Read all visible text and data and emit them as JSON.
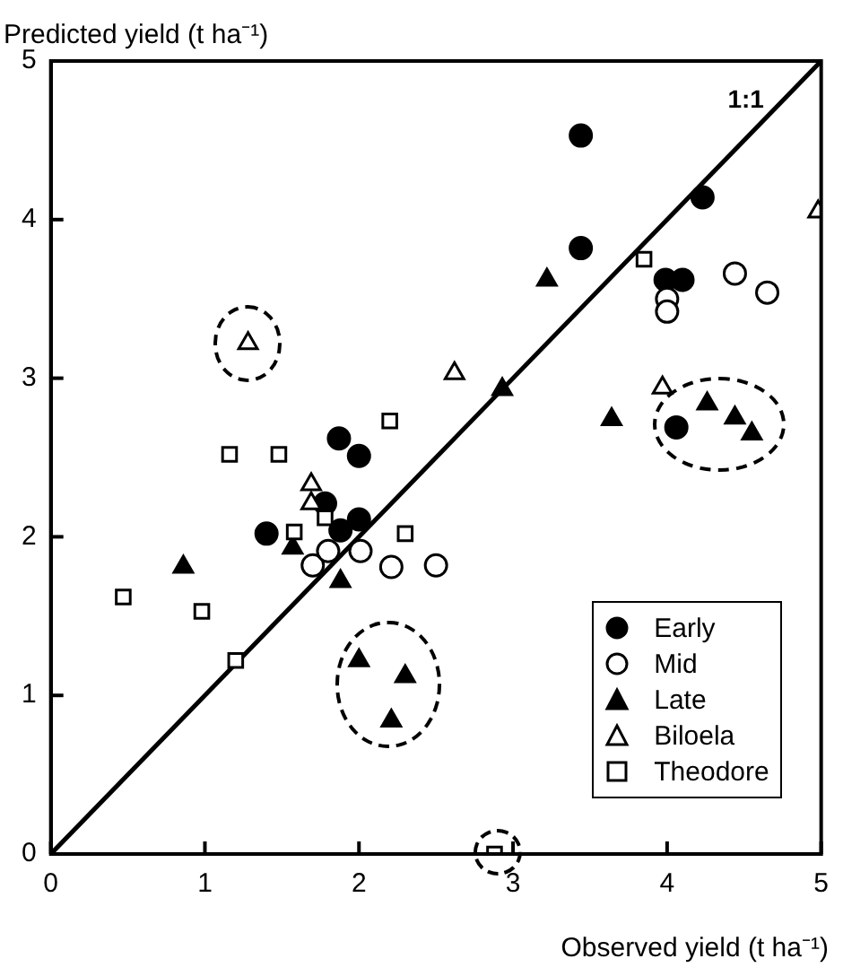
{
  "chart_data": {
    "type": "scatter",
    "xlabel": "Observed yield (t ha⁻¹)",
    "ylabel": "Predicted yield (t ha⁻¹)",
    "xlim": [
      0,
      5
    ],
    "ylim": [
      0,
      5
    ],
    "xticks": [
      0,
      1,
      2,
      3,
      4,
      5
    ],
    "yticks": [
      0,
      1,
      2,
      3,
      4,
      5
    ],
    "grid": false,
    "legend": "bottom right",
    "annotations": [
      "1:1"
    ],
    "series": [
      {
        "name": "Early",
        "color": "#000000",
        "marker": "circle",
        "x": [
          3.44,
          3.44,
          4.23,
          3.99,
          4.1,
          4.06,
          1.87,
          2.0,
          1.78,
          1.4,
          1.88,
          2.0
        ],
        "values": [
          4.53,
          3.82,
          4.14,
          3.62,
          3.62,
          2.69,
          2.62,
          2.51,
          2.21,
          2.02,
          2.04,
          2.11
        ]
      },
      {
        "name": "Mid",
        "color": "#ffffff",
        "marker": "circle",
        "x": [
          4.0,
          4.0,
          4.44,
          4.65,
          1.7,
          1.8,
          2.01,
          2.21,
          2.5
        ],
        "values": [
          3.5,
          3.42,
          3.66,
          3.54,
          1.82,
          1.91,
          1.91,
          1.81,
          1.82
        ]
      },
      {
        "name": "Late",
        "color": "#000000",
        "marker": "triangle",
        "x": [
          3.22,
          2.93,
          3.64,
          4.26,
          4.44,
          4.55,
          0.86,
          1.57,
          1.88,
          2.0,
          2.3,
          2.21
        ],
        "values": [
          3.62,
          2.93,
          2.74,
          2.84,
          2.75,
          2.65,
          1.81,
          1.93,
          1.72,
          1.22,
          1.12,
          0.84
        ]
      },
      {
        "name": "Biloela",
        "color": "#ffffff",
        "marker": "triangle",
        "x": [
          1.28,
          4.98,
          2.62,
          3.97,
          1.69,
          1.69
        ],
        "values": [
          3.22,
          4.05,
          3.03,
          2.94,
          2.33,
          2.21
        ]
      },
      {
        "name": "Theodore",
        "color": "#ffffff",
        "marker": "square",
        "x": [
          3.85,
          2.2,
          1.16,
          1.48,
          1.58,
          1.78,
          2.3,
          0.47,
          0.98,
          1.2,
          2.88
        ],
        "values": [
          3.75,
          2.73,
          2.52,
          2.52,
          2.03,
          2.12,
          2.02,
          1.62,
          1.53,
          1.22,
          0.0
        ]
      },
      {
        "type": "line",
        "color": "#000000",
        "marker": "none",
        "x": [
          0,
          5
        ],
        "values": [
          0,
          5
        ]
      }
    ]
  }
}
